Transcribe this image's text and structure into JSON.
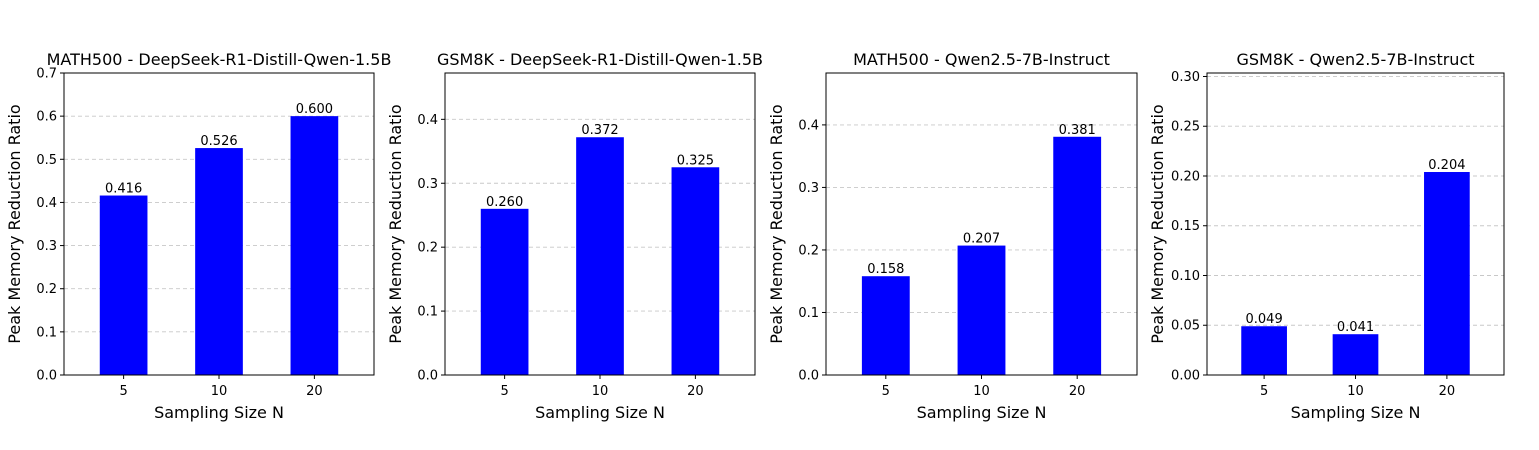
{
  "figure": {
    "bar_color": "#0000ff",
    "grid_color": "#c8c8c8"
  },
  "chart_data": [
    {
      "type": "bar",
      "title": "MATH500 - DeepSeek-R1-Distill-Qwen-1.5B",
      "xlabel": "Sampling Size N",
      "ylabel": "Peak Memory Reduction Ratio",
      "categories": [
        "5",
        "10",
        "20"
      ],
      "values": [
        0.416,
        0.526,
        0.6
      ],
      "value_labels": [
        "0.416",
        "0.526",
        "0.600"
      ],
      "ylim": [
        0,
        0.7
      ],
      "yticks": [
        0.0,
        0.1,
        0.2,
        0.3,
        0.4,
        0.5,
        0.6,
        0.7
      ],
      "ytick_labels": [
        "0.0",
        "0.1",
        "0.2",
        "0.3",
        "0.4",
        "0.5",
        "0.6",
        "0.7"
      ],
      "grid": "y-dashed"
    },
    {
      "type": "bar",
      "title": "GSM8K - DeepSeek-R1-Distill-Qwen-1.5B",
      "xlabel": "Sampling Size N",
      "ylabel": "Peak Memory Reduction Ratio",
      "categories": [
        "5",
        "10",
        "20"
      ],
      "values": [
        0.26,
        0.372,
        0.325
      ],
      "value_labels": [
        "0.260",
        "0.372",
        "0.325"
      ],
      "ylim": [
        0,
        0.4725
      ],
      "yticks": [
        0.0,
        0.1,
        0.2,
        0.3,
        0.4
      ],
      "ytick_labels": [
        "0.0",
        "0.1",
        "0.2",
        "0.3",
        "0.4"
      ],
      "grid": "y-dashed"
    },
    {
      "type": "bar",
      "title": "MATH500 - Qwen2.5-7B-Instruct",
      "xlabel": "Sampling Size N",
      "ylabel": "Peak Memory Reduction Ratio",
      "categories": [
        "5",
        "10",
        "20"
      ],
      "values": [
        0.158,
        0.207,
        0.381
      ],
      "value_labels": [
        "0.158",
        "0.207",
        "0.381"
      ],
      "ylim": [
        0,
        0.483
      ],
      "yticks": [
        0.0,
        0.1,
        0.2,
        0.3,
        0.4
      ],
      "ytick_labels": [
        "0.0",
        "0.1",
        "0.2",
        "0.3",
        "0.4"
      ],
      "grid": "y-dashed"
    },
    {
      "type": "bar",
      "title": "GSM8K - Qwen2.5-7B-Instruct",
      "xlabel": "Sampling Size N",
      "ylabel": "Peak Memory Reduction Ratio",
      "categories": [
        "5",
        "10",
        "20"
      ],
      "values": [
        0.049,
        0.041,
        0.204
      ],
      "value_labels": [
        "0.049",
        "0.041",
        "0.204"
      ],
      "ylim": [
        0,
        0.3035
      ],
      "yticks": [
        0.0,
        0.05,
        0.1,
        0.15,
        0.2,
        0.25,
        0.3
      ],
      "ytick_labels": [
        "0.00",
        "0.05",
        "0.10",
        "0.15",
        "0.20",
        "0.25",
        "0.30"
      ],
      "grid": "y-dashed"
    }
  ]
}
